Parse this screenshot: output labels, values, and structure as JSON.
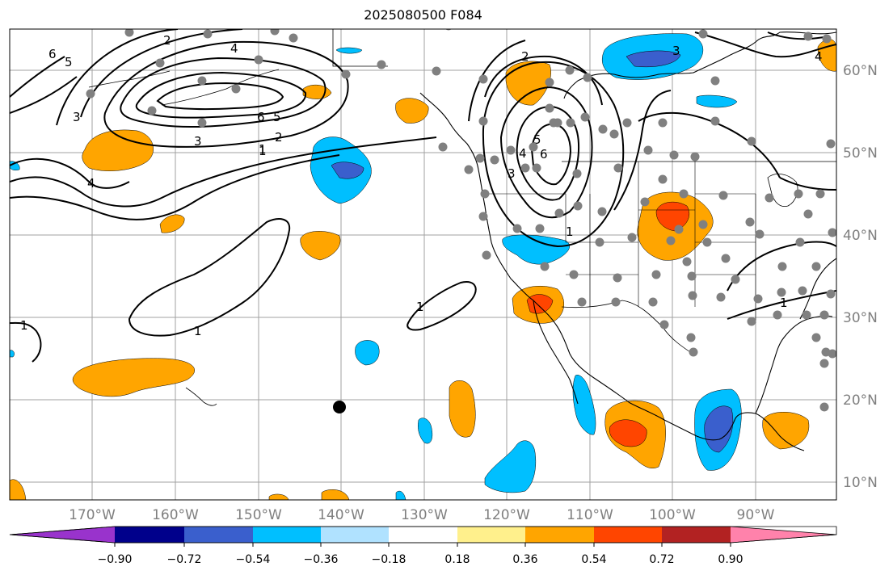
{
  "title": "2025080500 F084",
  "colors": {
    "neg_090": "#9933cc",
    "neg_072": "#00008b",
    "neg_054": "#3a5fcd",
    "neg_036": "#00bfff",
    "neg_018": "#b0e2ff",
    "neutral": "#ffffff",
    "pos_018": "#fff08c",
    "pos_036": "#ffa500",
    "pos_054": "#ff4500",
    "pos_072": "#b22222",
    "pos_090": "#ff82ab",
    "station_dot": "#808080",
    "marker_dot": "#000000",
    "contour": "#000000",
    "grid": "#a0a0a0"
  },
  "longitude_labels": [
    "170°W",
    "160°W",
    "150°W",
    "140°W",
    "130°W",
    "120°W",
    "110°W",
    "100°W",
    "90°W"
  ],
  "latitude_labels": [
    "60°N",
    "50°N",
    "40°N",
    "30°N",
    "20°N",
    "10°N"
  ],
  "colorbar": {
    "ticks": [
      "−0.90",
      "−0.72",
      "−0.54",
      "−0.36",
      "−0.18",
      "0.18",
      "0.36",
      "0.54",
      "0.72",
      "0.90"
    ]
  },
  "contour_labels": [
    "6",
    "5",
    "4",
    "3",
    "2",
    "1",
    "6",
    "5",
    "4",
    "3",
    "2",
    "1",
    "2",
    "3",
    "4",
    "5",
    "6",
    "3",
    "1",
    "1",
    "1",
    "1",
    "1",
    "4"
  ]
}
